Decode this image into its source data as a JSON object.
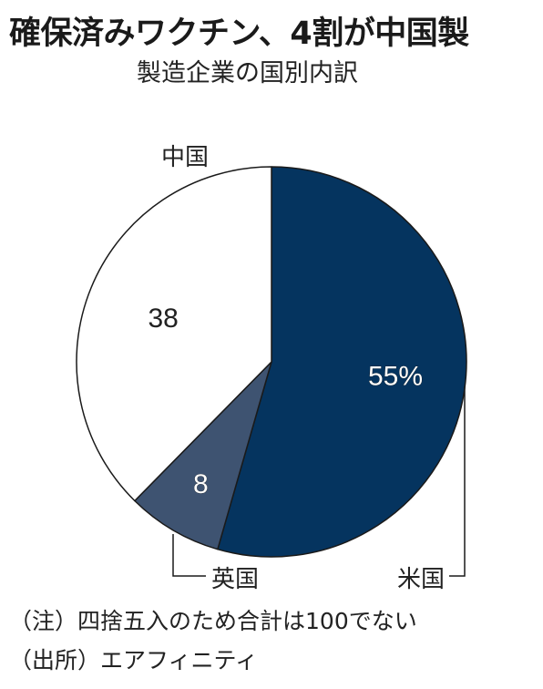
{
  "title": "確保済みワクチン、4割が中国製",
  "subtitle": "製造企業の国別内訳",
  "chart_data": {
    "type": "pie",
    "title": "確保済みワクチン、4割が中国製",
    "subtitle": "製造企業の国別内訳",
    "unit": "%",
    "slices": [
      {
        "label": "米国",
        "value": 55,
        "display": "55%",
        "color": "#05345f",
        "text_color": "#ffffff"
      },
      {
        "label": "英国",
        "value": 8,
        "display": "8",
        "color": "#3e5371",
        "text_color": "#ffffff"
      },
      {
        "label": "中国",
        "value": 38,
        "display": "38",
        "color": "#ffffff",
        "text_color": "#222222"
      }
    ],
    "start_angle_deg": 0,
    "direction": "clockwise"
  },
  "notes": {
    "note1": "（注）四捨五入のため合計は100でない",
    "source": "（出所）エアフィニティ"
  }
}
